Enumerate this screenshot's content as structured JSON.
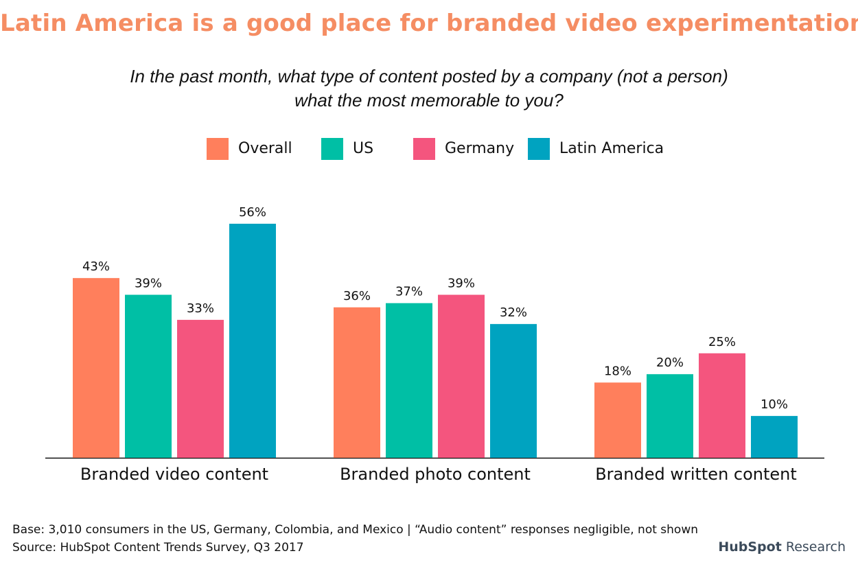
{
  "chart_data": {
    "type": "bar",
    "title": "Latin America is a good place for branded video experimentation",
    "subtitle_lines": [
      "In the past month, what type of content posted by a company (not a person)",
      "what the most memorable to you?"
    ],
    "categories": [
      "Branded video content",
      "Branded photo content",
      "Branded written content"
    ],
    "series": [
      {
        "name": "Overall",
        "color": "#ff7f5c",
        "values": [
          43,
          36,
          18
        ]
      },
      {
        "name": "US",
        "color": "#00bfa5",
        "values": [
          39,
          37,
          20
        ]
      },
      {
        "name": "Germany",
        "color": "#f4557e",
        "values": [
          33,
          39,
          25
        ]
      },
      {
        "name": "Latin America",
        "color": "#00a3c0",
        "values": [
          56,
          32,
          10
        ]
      }
    ],
    "value_suffix": "%",
    "ylim": [
      0,
      56
    ],
    "grid": false,
    "legend_position": "top-center",
    "xlabel": "",
    "ylabel": ""
  },
  "footer": {
    "base_note": "Base: 3,010 consumers in the US, Germany, Colombia, and Mexico | “Audio content” responses negligible, not shown",
    "source_note": "Source: HubSpot Content Trends Survey, Q3 2017"
  },
  "brand": {
    "name": "HubSpot",
    "suffix": "Research"
  }
}
